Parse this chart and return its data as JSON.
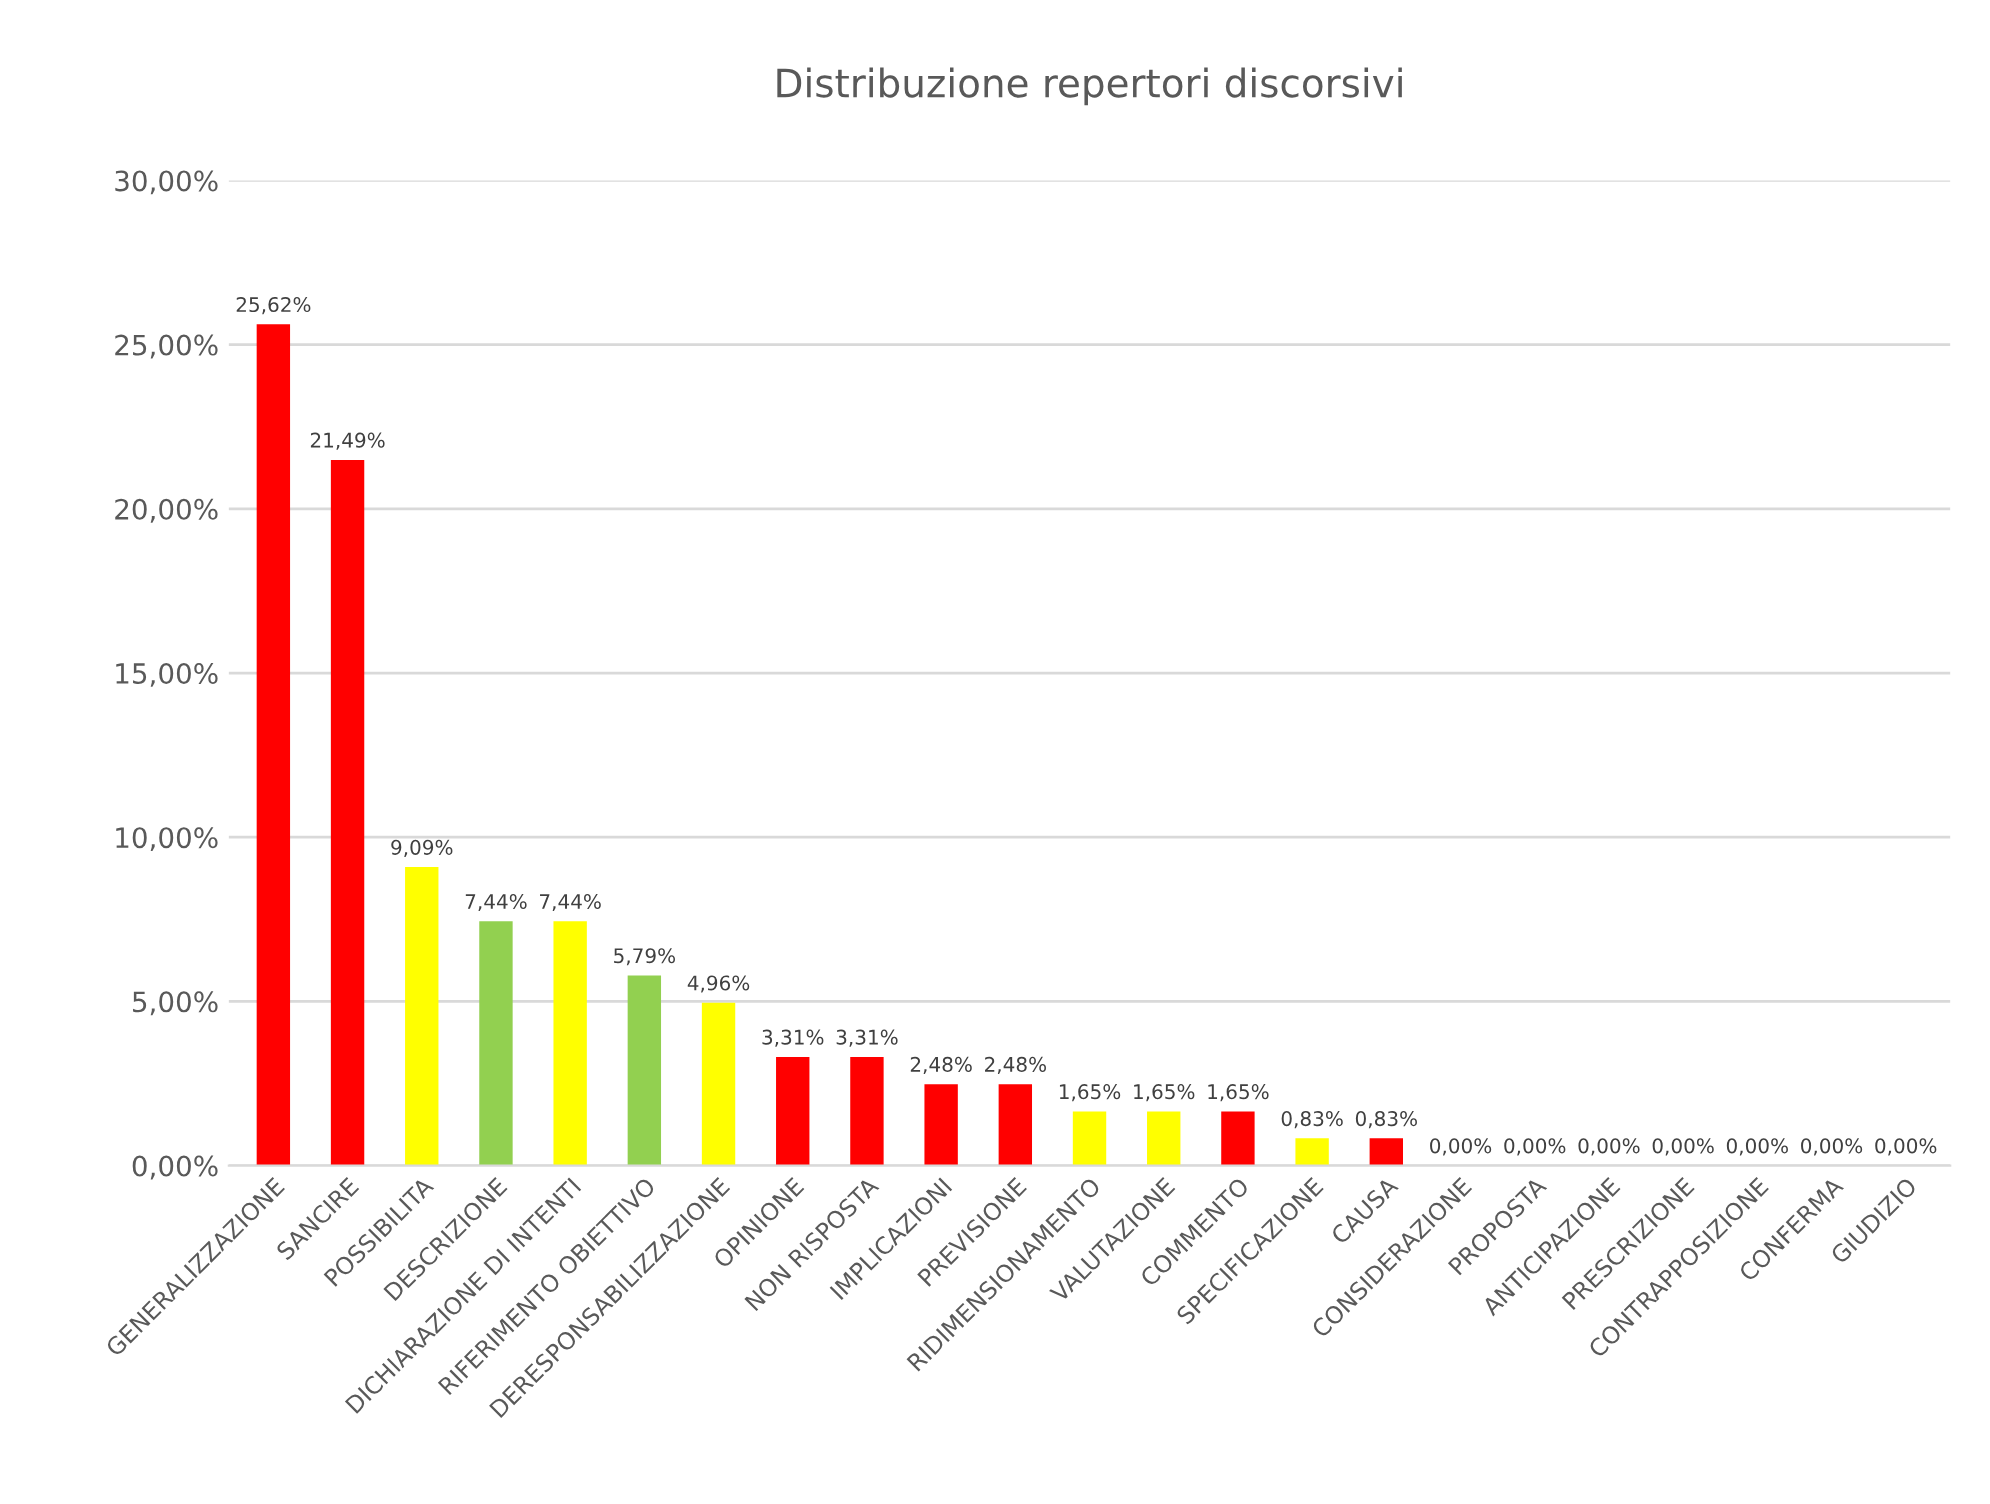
{
  "chart_data": {
    "type": "bar",
    "title": "Distribuzione repertori discorsivi",
    "categories": [
      "GENERALIZZAZIONE",
      "SANCIRE",
      "POSSIBILITA",
      "DESCRIZIONE",
      "DICHIARAZIONE DI INTENTI",
      "RIFERIMENTO OBIETTIVO",
      "DERESPONSABILIZZAZIONE",
      "OPINIONE",
      "NON RISPOSTA",
      "IMPLICAZIONI",
      "PREVISIONE",
      "RIDIMENSIONAMENTO",
      "VALUTAZIONE",
      "COMMENTO",
      "SPECIFICAZIONE",
      "CAUSA",
      "CONSIDERAZIONE",
      "PROPOSTA",
      "ANTICIPAZIONE",
      "PRESCRIZIONE",
      "CONTRAPPOSIZIONE",
      "CONFERMA",
      "GIUDIZIO"
    ],
    "values": [
      25.62,
      21.49,
      9.09,
      7.44,
      7.44,
      5.79,
      4.96,
      3.31,
      3.31,
      2.48,
      2.48,
      1.65,
      1.65,
      1.65,
      0.83,
      0.83,
      0,
      0,
      0,
      0,
      0,
      0,
      0
    ],
    "colors": [
      "#ff0000",
      "#ff0000",
      "#ffff00",
      "#92d050",
      "#ffff00",
      "#92d050",
      "#ffff00",
      "#ff0000",
      "#ff0000",
      "#ff0000",
      "#ff0000",
      "#ffff00",
      "#ffff00",
      "#ff0000",
      "#ffff00",
      "#ff0000",
      "#92d050",
      "#92d050",
      "#92d050",
      "#ffff00",
      "#ff0000",
      "#ffff00",
      "#ff0000"
    ],
    "value_labels": [
      "25,62%",
      "21,49%",
      "9,09%",
      "7,44%",
      "7,44%",
      "5,79%",
      "4,96%",
      "3,31%",
      "3,31%",
      "2,48%",
      "2,48%",
      "1,65%",
      "1,65%",
      "1,65%",
      "0,83%",
      "0,83%",
      "0,00%",
      "0,00%",
      "0,00%",
      "0,00%",
      "0,00%",
      "0,00%",
      "0,00%"
    ],
    "ylim": [
      0,
      30
    ],
    "yticks": [
      {
        "value": 0,
        "label": "0,00%"
      },
      {
        "value": 5,
        "label": "5,00%"
      },
      {
        "value": 10,
        "label": "10,00%"
      },
      {
        "value": 15,
        "label": "15,00%"
      },
      {
        "value": 20,
        "label": "20,00%"
      },
      {
        "value": 25,
        "label": "25,00%"
      },
      {
        "value": 30,
        "label": "30,00%"
      }
    ],
    "grid": "y",
    "legend": false
  }
}
